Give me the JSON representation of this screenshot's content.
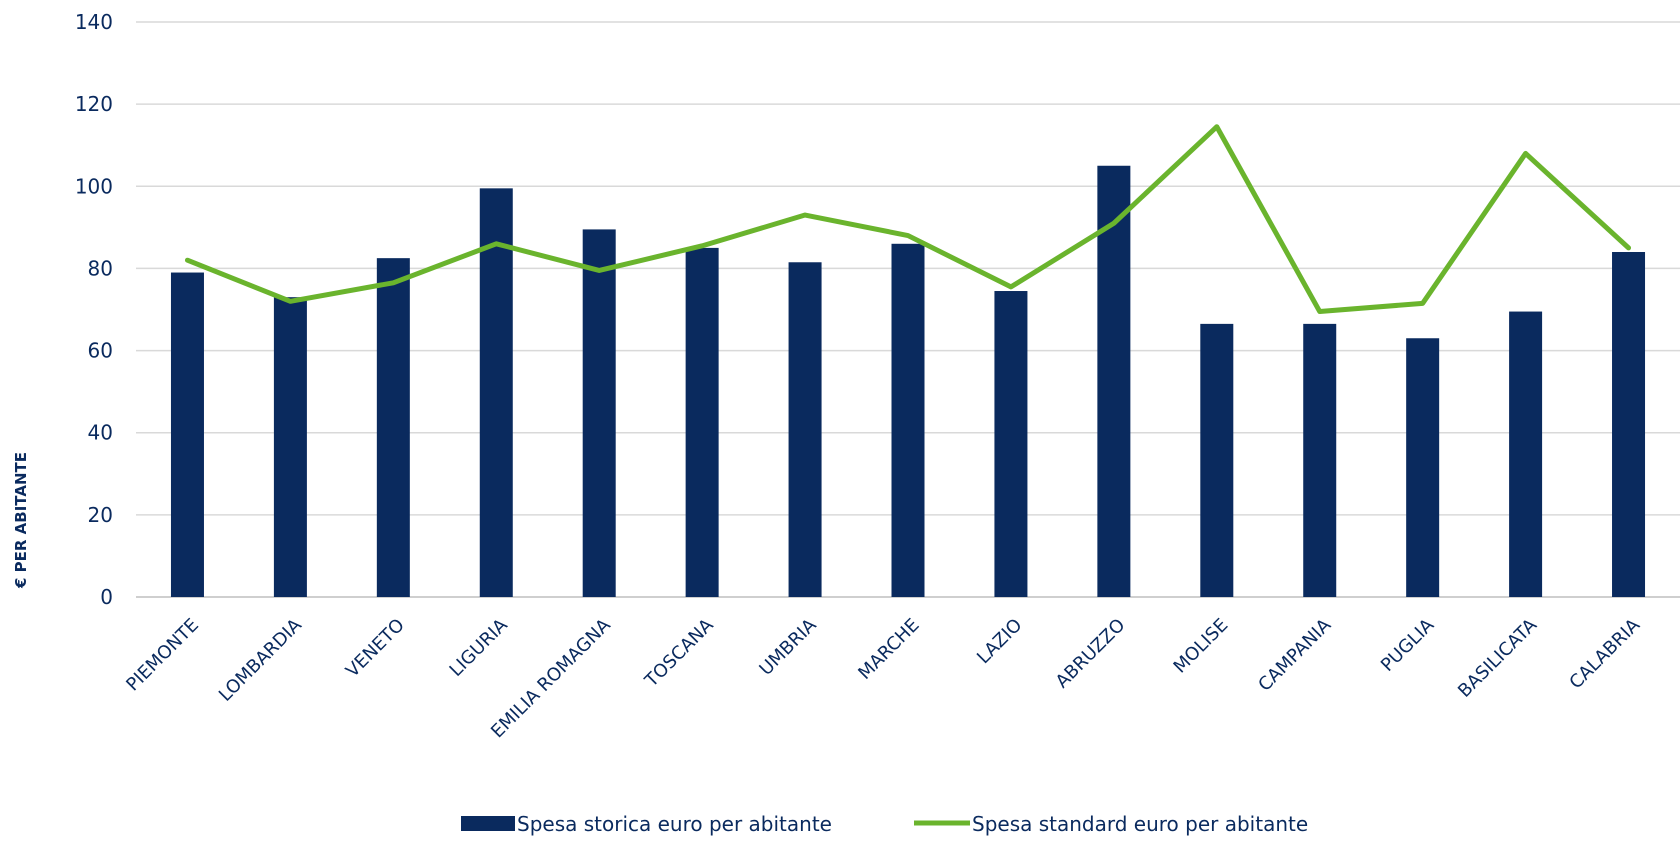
{
  "chart_data": {
    "type": "bar",
    "categories": [
      "PIEMONTE",
      "LOMBARDIA",
      "VENETO",
      "LIGURIA",
      "EMILIA ROMAGNA",
      "TOSCANA",
      "UMBRIA",
      "MARCHE",
      "LAZIO",
      "ABRUZZO",
      "MOLISE",
      "CAMPANIA",
      "PUGLIA",
      "BASILICATA",
      "CALABRIA"
    ],
    "series": [
      {
        "name": "Spesa storica euro per abitante",
        "kind": "bar",
        "color": "#0a2a5e",
        "values": [
          79,
          73,
          82.5,
          99.5,
          89.5,
          85,
          81.5,
          86,
          74.5,
          105,
          66.5,
          66.5,
          63,
          69.5,
          84
        ]
      },
      {
        "name": "Spesa standard euro per abitante",
        "kind": "line",
        "color": "#6ab42d",
        "values": [
          82,
          72,
          76.5,
          86,
          79.5,
          85.5,
          93,
          88,
          75.5,
          91,
          114.5,
          69.5,
          71.5,
          108,
          85
        ]
      }
    ],
    "yticks": [
      0,
      20,
      40,
      60,
      80,
      100,
      120,
      140
    ],
    "ylim": [
      0,
      140
    ],
    "ylabel": "€ PER ABITANTE",
    "xlabel": "",
    "title": "",
    "grid": true,
    "legend_position": "bottom"
  }
}
